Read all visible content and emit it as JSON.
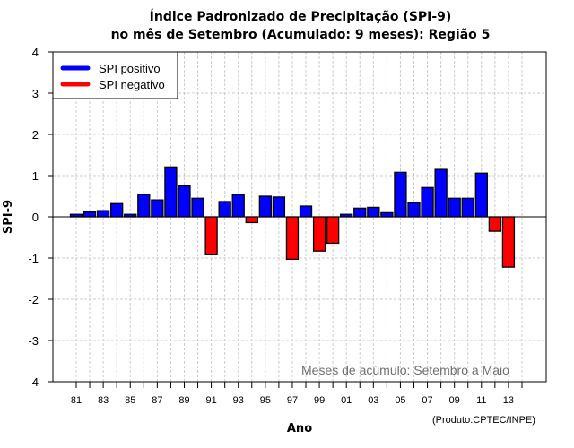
{
  "chart_data": {
    "type": "bar",
    "title": "Índice Padronizado de Precipitação (SPI-9)",
    "subtitle": "no mês de Setembro (Acumulado: 9 meses): Região 5",
    "xlabel": "Ano",
    "ylabel": "SPI-9",
    "ylim": [
      -4,
      4
    ],
    "yticks": [
      "4",
      "3",
      "2",
      "1",
      "0",
      "-1",
      "-2",
      "-3",
      "-4"
    ],
    "ytick_values": [
      4,
      3,
      2,
      1,
      0,
      -1,
      -2,
      -3,
      -4
    ],
    "xlim_years": [
      1981,
      2014
    ],
    "xtick_labels": [
      "81",
      "83",
      "85",
      "87",
      "89",
      "91",
      "93",
      "95",
      "97",
      "99",
      "01",
      "03",
      "05",
      "07",
      "09",
      "11",
      "13"
    ],
    "xtick_label_years": [
      1981,
      1983,
      1985,
      1987,
      1989,
      1991,
      1993,
      1995,
      1997,
      1999,
      2001,
      2003,
      2005,
      2007,
      2009,
      2011,
      2013
    ],
    "grid": true,
    "legend_position": "top-left",
    "legend": [
      {
        "label": "SPI positivo",
        "color": "#0000ff"
      },
      {
        "label": "SPI negativo",
        "color": "#ff0000"
      }
    ],
    "annotation": "Meses de acúmulo: Setembro a Maio",
    "credit": "(Produto:CPTEC/INPE)",
    "colors": {
      "positive": "#0000ff",
      "negative": "#ff0000"
    },
    "categories": [
      1981,
      1982,
      1983,
      1984,
      1985,
      1986,
      1987,
      1988,
      1989,
      1990,
      1991,
      1992,
      1993,
      1994,
      1995,
      1996,
      1997,
      1998,
      1999,
      2000,
      2001,
      2002,
      2003,
      2004,
      2005,
      2006,
      2007,
      2008,
      2009,
      2010,
      2011,
      2012,
      2013
    ],
    "values": [
      0.06,
      0.12,
      0.15,
      0.32,
      0.06,
      0.54,
      0.41,
      1.21,
      0.75,
      0.45,
      -0.92,
      0.37,
      0.54,
      -0.14,
      0.5,
      0.48,
      -1.03,
      0.26,
      -0.83,
      -0.64,
      0.06,
      0.21,
      0.23,
      0.1,
      1.08,
      0.34,
      0.71,
      1.15,
      0.45,
      0.45,
      1.06,
      -0.35,
      -1.22
    ]
  }
}
